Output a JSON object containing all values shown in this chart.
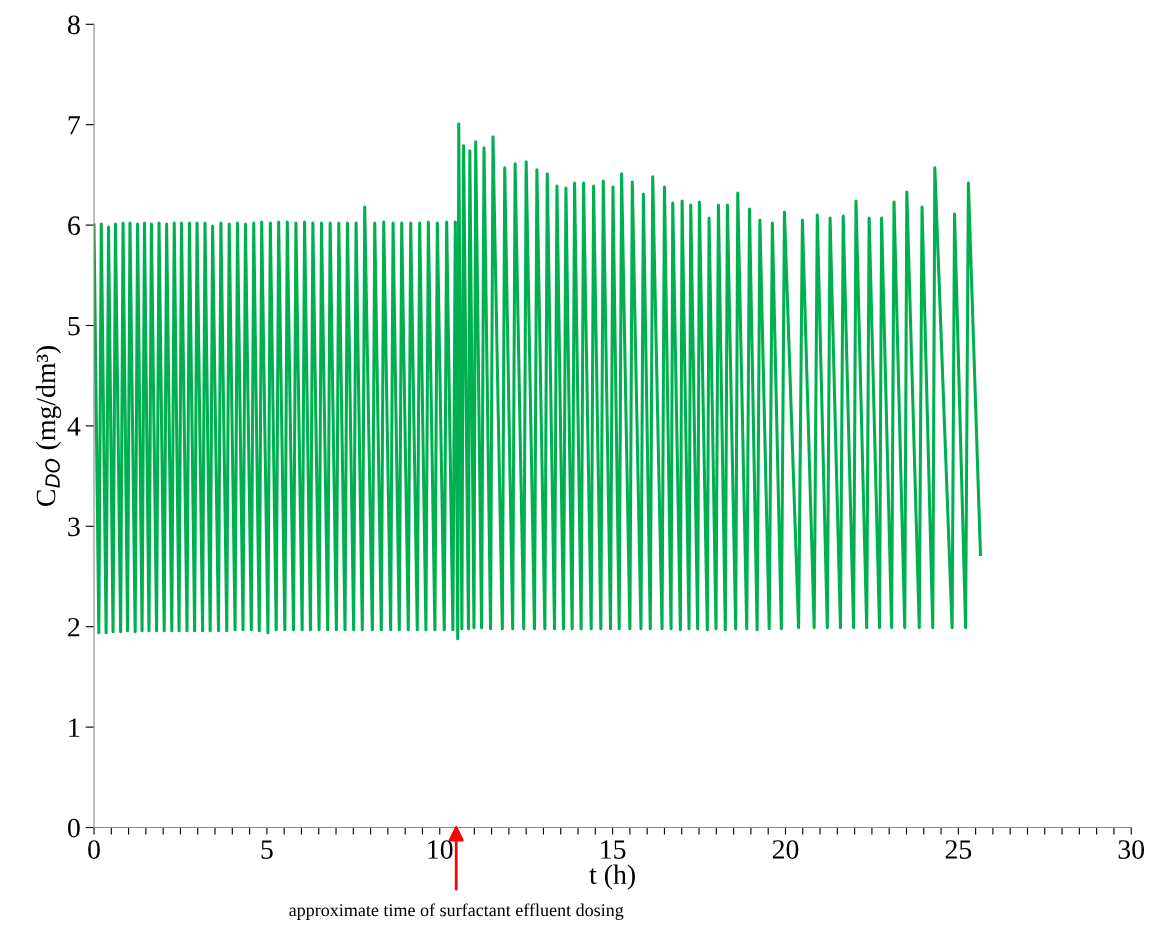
{
  "chart_data": {
    "type": "line",
    "xlabel": "t (h)",
    "ylabel": "C$_{DO}$ (mg/dm³)",
    "annotations": [
      "approximate time of surfactant effluent dosing"
    ],
    "xlim": [
      0,
      30
    ],
    "ylim": [
      0,
      8
    ],
    "xticks": [
      0,
      {
        "value": 0.5,
        "label": null
      },
      {
        "value": 1,
        "label": null
      },
      {
        "value": 1.5,
        "label": null
      },
      {
        "value": 2,
        "label": null
      },
      {
        "value": 2.5,
        "label": null
      },
      {
        "value": 3,
        "label": null
      },
      {
        "value": 3.5,
        "label": null
      },
      {
        "value": 4,
        "label": null
      },
      {
        "value": 4.5,
        "label": null
      },
      5,
      {
        "value": 5.5,
        "label": null
      },
      {
        "value": 6,
        "label": null
      },
      {
        "value": 6.5,
        "label": null
      },
      {
        "value": 7,
        "label": null
      },
      {
        "value": 7.5,
        "label": null
      },
      {
        "value": 8,
        "label": null
      },
      {
        "value": 8.5,
        "label": null
      },
      {
        "value": 9,
        "label": null
      },
      {
        "value": 9.5,
        "label": null
      },
      10,
      {
        "value": 10.5,
        "label": null
      },
      {
        "value": 11,
        "label": null
      },
      {
        "value": 11.5,
        "label": null
      },
      {
        "value": 12,
        "label": null
      },
      {
        "value": 12.5,
        "label": null
      },
      {
        "value": 13,
        "label": null
      },
      {
        "value": 13.5,
        "label": null
      },
      {
        "value": 14,
        "label": null
      },
      {
        "value": 14.5,
        "label": null
      },
      15,
      {
        "value": 15.5,
        "label": null
      },
      {
        "value": 16,
        "label": null
      },
      {
        "value": 16.5,
        "label": null
      },
      {
        "value": 17,
        "label": null
      },
      {
        "value": 17.5,
        "label": null
      },
      {
        "value": 18,
        "label": null
      },
      {
        "value": 18.5,
        "label": null
      },
      {
        "value": 19,
        "label": null
      },
      {
        "value": 19.5,
        "label": null
      },
      20,
      {
        "value": 20.5,
        "label": null
      },
      {
        "value": 21,
        "label": null
      },
      {
        "value": 21.5,
        "label": null
      },
      {
        "value": 22,
        "label": null
      },
      {
        "value": 22.5,
        "label": null
      },
      {
        "value": 23,
        "label": null
      },
      {
        "value": 23.5,
        "label": null
      },
      {
        "value": 24,
        "label": null
      },
      {
        "value": 24.5,
        "label": null
      },
      25,
      {
        "value": 25.5,
        "label": null
      },
      {
        "value": 26,
        "label": null
      },
      {
        "value": 26.5,
        "label": null
      },
      {
        "value": 27,
        "label": null
      },
      {
        "value": 27.5,
        "label": null
      },
      {
        "value": 28,
        "label": null
      },
      {
        "value": 28.5,
        "label": null
      },
      {
        "value": 29,
        "label": null
      },
      {
        "value": 29.5,
        "label": null
      },
      30
    ],
    "yticks": [
      0,
      1,
      2,
      3,
      4,
      5,
      6,
      7,
      8
    ],
    "grid": false,
    "marker": "none",
    "line_style": "solid",
    "series": [
      {
        "color": "#00b050",
        "x": [
          0,
          0.14,
          0.21,
          0.35,
          0.42,
          0.55,
          0.62,
          0.77,
          0.84,
          0.97,
          1.04,
          1.19,
          1.26,
          1.39,
          1.46,
          1.59,
          1.66,
          1.81,
          1.88,
          2.03,
          2.1,
          2.25,
          2.32,
          2.46,
          2.53,
          2.69,
          2.76,
          2.91,
          2.98,
          3.14,
          3.21,
          3.36,
          3.43,
          3.6,
          3.67,
          3.84,
          3.91,
          4.08,
          4.15,
          4.31,
          4.38,
          4.55,
          4.62,
          4.78,
          4.85,
          5.03,
          5.1,
          5.27,
          5.34,
          5.52,
          5.59,
          5.77,
          5.84,
          6.02,
          6.09,
          6.26,
          6.33,
          6.51,
          6.58,
          6.76,
          6.83,
          7.01,
          7.08,
          7.26,
          7.33,
          7.51,
          7.58,
          7.76,
          7.83,
          8.05,
          8.12,
          8.31,
          8.38,
          8.58,
          8.65,
          8.83,
          8.9,
          9.09,
          9.16,
          9.35,
          9.42,
          9.6,
          9.67,
          9.86,
          9.93,
          10.13,
          10.2,
          10.38,
          10.45,
          10.52,
          10.55,
          10.64,
          10.69,
          10.83,
          10.87,
          10.99,
          11.04,
          11.21,
          11.28,
          11.47,
          11.54,
          11.81,
          11.88,
          12.11,
          12.18,
          12.43,
          12.5,
          12.74,
          12.81,
          13.04,
          13.11,
          13.32,
          13.39,
          13.58,
          13.65,
          13.83,
          13.9,
          14.09,
          14.16,
          14.38,
          14.45,
          14.66,
          14.73,
          14.94,
          15.01,
          15.19,
          15.26,
          15.5,
          15.57,
          15.82,
          15.89,
          16.09,
          16.16,
          16.43,
          16.5,
          16.69,
          16.74,
          16.96,
          17.01,
          17.21,
          17.26,
          17.46,
          17.51,
          17.74,
          17.79,
          17.99,
          18.06,
          18.26,
          18.32,
          18.56,
          18.62,
          18.88,
          18.96,
          19.18,
          19.26,
          19.53,
          19.62,
          19.88,
          19.97,
          20.38,
          20.49,
          20.83,
          20.92,
          21.21,
          21.29,
          21.59,
          21.67,
          21.97,
          22.04,
          22.35,
          22.42,
          22.72,
          22.78,
          23.07,
          23.14,
          23.45,
          23.51,
          23.87,
          23.95,
          24.26,
          24.32,
          24.82,
          24.89,
          25.21,
          25.29,
          25.64
        ],
        "values": [
          6.0,
          1.94,
          6.01,
          1.94,
          5.98,
          1.95,
          6.01,
          1.95,
          6.02,
          1.96,
          6.02,
          1.95,
          6.01,
          1.96,
          6.02,
          1.96,
          6.01,
          1.96,
          6.02,
          1.96,
          6.01,
          1.96,
          6.02,
          1.96,
          6.02,
          1.96,
          6.02,
          1.96,
          6.02,
          1.96,
          6.02,
          1.96,
          5.99,
          1.96,
          6.02,
          1.96,
          6.01,
          1.97,
          6.02,
          1.97,
          6.01,
          1.97,
          6.02,
          1.96,
          6.03,
          1.94,
          6.02,
          1.97,
          6.03,
          1.97,
          6.03,
          1.97,
          6.02,
          1.97,
          6.03,
          1.97,
          6.02,
          1.97,
          6.02,
          1.97,
          6.02,
          1.97,
          6.02,
          1.97,
          6.02,
          1.97,
          6.02,
          1.97,
          6.18,
          1.97,
          6.02,
          1.97,
          6.03,
          1.97,
          6.02,
          1.97,
          6.02,
          1.97,
          6.02,
          1.97,
          6.02,
          1.97,
          6.03,
          1.97,
          6.02,
          1.97,
          6.03,
          1.97,
          6.03,
          1.88,
          7.01,
          1.98,
          6.79,
          1.98,
          6.74,
          1.99,
          6.83,
          1.99,
          6.77,
          1.98,
          6.88,
          1.98,
          6.57,
          1.98,
          6.61,
          1.98,
          6.63,
          1.98,
          6.55,
          1.98,
          6.51,
          1.98,
          6.39,
          1.98,
          6.37,
          1.98,
          6.42,
          1.98,
          6.42,
          1.98,
          6.39,
          1.98,
          6.44,
          1.98,
          6.38,
          1.98,
          6.51,
          1.98,
          6.43,
          1.98,
          6.31,
          1.98,
          6.48,
          1.98,
          6.38,
          1.98,
          6.22,
          1.97,
          6.24,
          1.98,
          6.2,
          1.98,
          6.23,
          1.97,
          6.07,
          1.98,
          6.2,
          1.97,
          6.2,
          1.98,
          6.32,
          1.98,
          6.16,
          1.97,
          6.05,
          1.98,
          6.02,
          1.98,
          6.13,
          1.99,
          6.05,
          1.99,
          6.1,
          1.99,
          6.07,
          1.99,
          6.09,
          1.99,
          6.24,
          1.99,
          6.07,
          1.99,
          6.07,
          1.99,
          6.23,
          1.99,
          6.33,
          1.99,
          6.18,
          1.99,
          6.57,
          1.99,
          6.11,
          1.99,
          6.42,
          2.72
        ]
      }
    ]
  }
}
